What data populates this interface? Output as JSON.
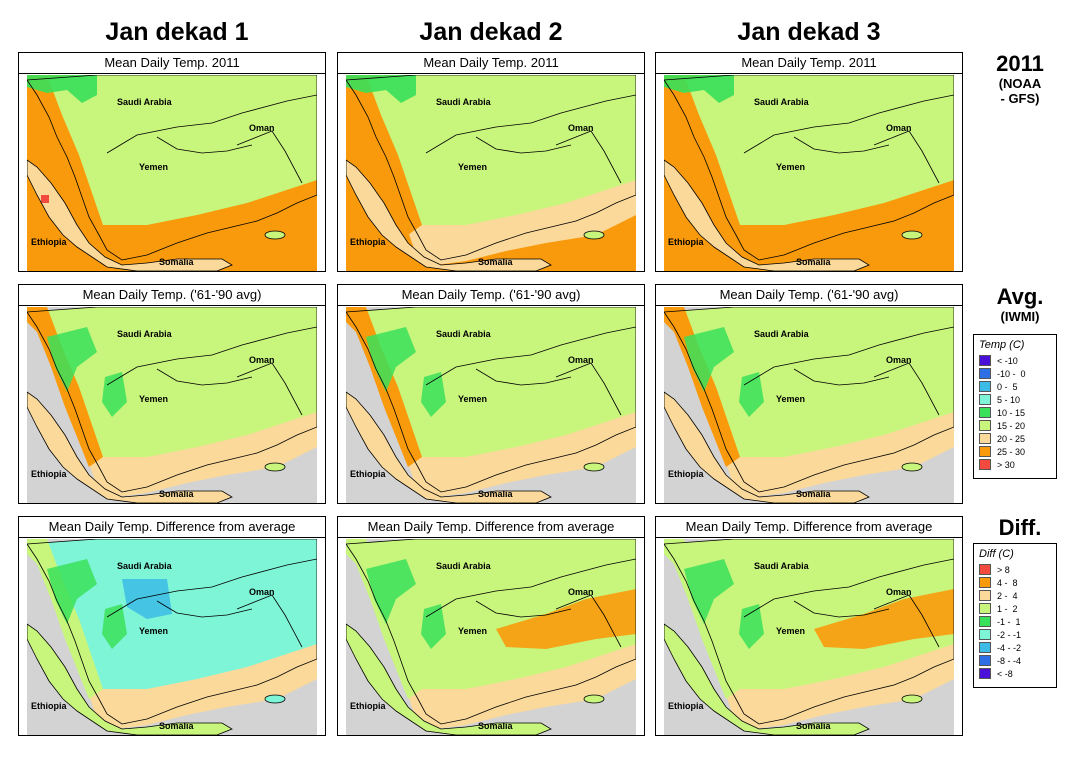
{
  "columns": [
    "Jan dekad 1",
    "Jan dekad 2",
    "Jan dekad 3"
  ],
  "rows": [
    {
      "key": "y2011",
      "label_big": "2011",
      "label_small": "(NOAA\n- GFS)",
      "panel_title": "Mean Daily Temp. 2011"
    },
    {
      "key": "avg",
      "label_big": "Avg.",
      "label_small": "(IWMI)",
      "panel_title": "Mean Daily Temp. ('61-'90 avg)"
    },
    {
      "key": "diff",
      "label_big": "Diff.",
      "label_small": "",
      "panel_title": "Mean Daily Temp. Difference from average"
    }
  ],
  "row_labels": {
    "y2011": {
      "big": "2011",
      "small1": "(NOAA",
      "small2": "- GFS)"
    },
    "avg": {
      "big": "Avg.",
      "small1": "(IWMI)"
    },
    "diff": {
      "big": "Diff."
    }
  },
  "places": {
    "saudi": "Saudi Arabia",
    "oman": "Oman",
    "yemen": "Yemen",
    "ethiopia": "Ethiopia",
    "somalia": "Somalia"
  },
  "temp_legend": {
    "title": "Temp (C)",
    "items": [
      {
        "label": "< -10",
        "color": "#4b10d8"
      },
      {
        "label": "-10 -  0",
        "color": "#2f6fe6"
      },
      {
        "label": "0 -  5",
        "color": "#3bbbe6"
      },
      {
        "label": "5 - 10",
        "color": "#7ff5d8"
      },
      {
        "label": "10 - 15",
        "color": "#39e05a"
      },
      {
        "label": "15 - 20",
        "color": "#c8f57c"
      },
      {
        "label": "20 - 25",
        "color": "#fad99b"
      },
      {
        "label": "25 - 30",
        "color": "#f99a0c"
      },
      {
        "label": "> 30",
        "color": "#f24a3e"
      }
    ]
  },
  "diff_legend": {
    "title": "Diff (C)",
    "items": [
      {
        "label": "> 8",
        "color": "#f24a3e"
      },
      {
        "label": "4 -  8",
        "color": "#f99a0c"
      },
      {
        "label": "2 -  4",
        "color": "#fad99b"
      },
      {
        "label": "1 -  2",
        "color": "#c8f57c"
      },
      {
        "label": "-1 -  1",
        "color": "#39e05a"
      },
      {
        "label": "-2 - -1",
        "color": "#7ff5d8"
      },
      {
        "label": "-4 - -2",
        "color": "#3bbbe6"
      },
      {
        "label": "-8 - -4",
        "color": "#2f6fe6"
      },
      {
        "label": "< -8",
        "color": "#4b10d8"
      }
    ]
  },
  "colors": {
    "sea": "#d3d3d3",
    "land_15_20": "#c8f57c",
    "land_20_25": "#fad99b",
    "land_25_30": "#f99a0c",
    "land_10_15": "#39e05a",
    "land_5_10": "#7ff5d8",
    "land_0_5": "#3bbbe6",
    "above_30": "#f24a3e"
  }
}
